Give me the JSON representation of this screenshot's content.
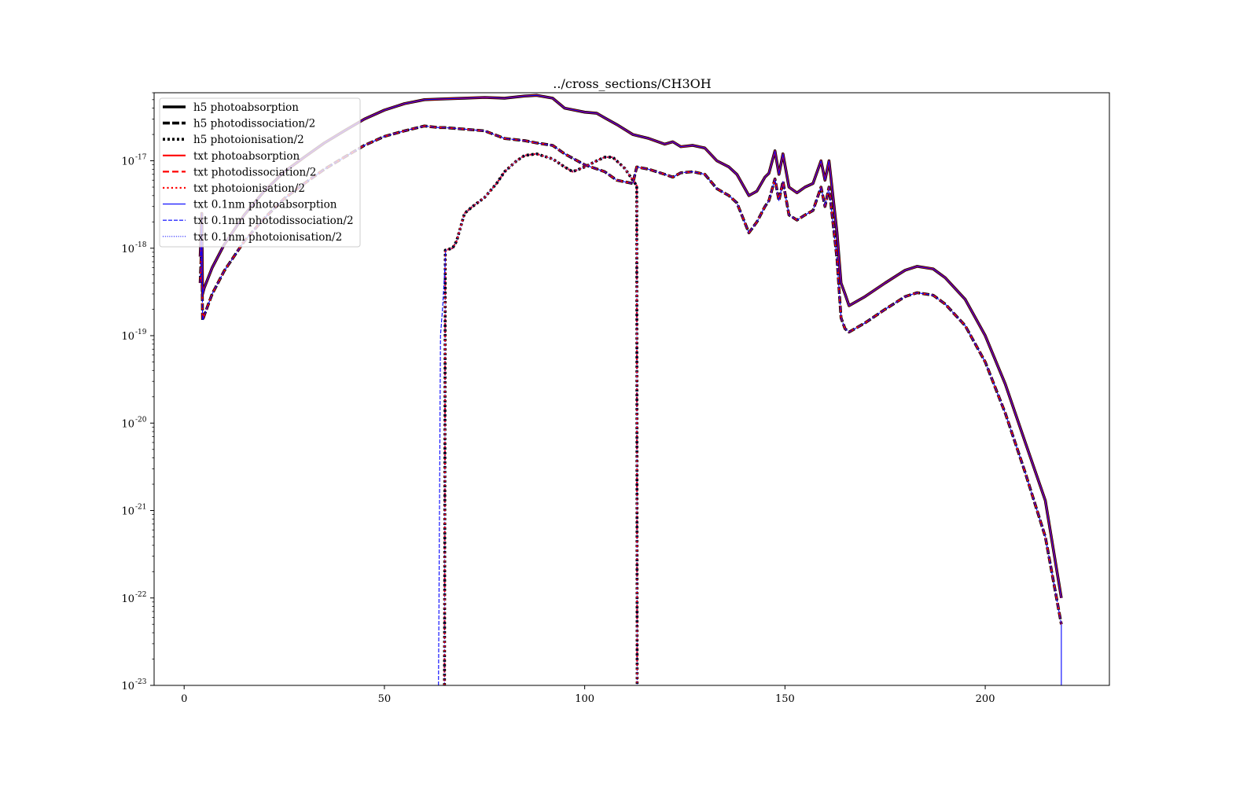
{
  "chart_data": {
    "type": "line",
    "title": "../cross_sections/CH3OH",
    "xlabel": "",
    "ylabel": "",
    "xscale": "linear",
    "yscale": "log",
    "xlim": [
      -7.5,
      231
    ],
    "ylim": [
      1e-23,
      6e-17
    ],
    "x_ticks": [
      0,
      50,
      100,
      150,
      200
    ],
    "y_ticks": [
      {
        "value": 1e-23,
        "base": "10",
        "exp": "-23"
      },
      {
        "value": 1e-22,
        "base": "10",
        "exp": "-22"
      },
      {
        "value": 1e-21,
        "base": "10",
        "exp": "-21"
      },
      {
        "value": 1e-20,
        "base": "10",
        "exp": "-20"
      },
      {
        "value": 1e-19,
        "base": "10",
        "exp": "-19"
      },
      {
        "value": 1e-18,
        "base": "10",
        "exp": "-18"
      },
      {
        "value": 1e-17,
        "base": "10",
        "exp": "-17"
      }
    ],
    "grid": false,
    "legend_position": "top-left",
    "curves": {
      "absorption": [
        [
          4,
          8e-19
        ],
        [
          4.4,
          2.5e-18
        ],
        [
          4.6,
          3e-19
        ],
        [
          5,
          3.5e-19
        ],
        [
          7,
          6e-19
        ],
        [
          10,
          1.1e-18
        ],
        [
          15,
          2.4e-18
        ],
        [
          20,
          4.5e-18
        ],
        [
          25,
          7.5e-18
        ],
        [
          30,
          1.1e-17
        ],
        [
          35,
          1.6e-17
        ],
        [
          40,
          2.2e-17
        ],
        [
          45,
          3e-17
        ],
        [
          50,
          3.8e-17
        ],
        [
          55,
          4.5e-17
        ],
        [
          60,
          5e-17
        ],
        [
          65,
          5.1e-17
        ],
        [
          70,
          5.2e-17
        ],
        [
          75,
          5.3e-17
        ],
        [
          80,
          5.2e-17
        ],
        [
          85,
          5.5e-17
        ],
        [
          88,
          5.6e-17
        ],
        [
          92,
          5.2e-17
        ],
        [
          95,
          4e-17
        ],
        [
          100,
          3.6e-17
        ],
        [
          103,
          3.5e-17
        ],
        [
          105,
          3.1e-17
        ],
        [
          108,
          2.6e-17
        ],
        [
          112,
          2e-17
        ],
        [
          116,
          1.8e-17
        ],
        [
          120,
          1.55e-17
        ],
        [
          122,
          1.65e-17
        ],
        [
          124,
          1.45e-17
        ],
        [
          127,
          1.5e-17
        ],
        [
          130,
          1.4e-17
        ],
        [
          133,
          1e-17
        ],
        [
          136,
          8.5e-18
        ],
        [
          138,
          7e-18
        ],
        [
          141,
          4e-18
        ],
        [
          143,
          4.5e-18
        ],
        [
          145,
          6.5e-18
        ],
        [
          146,
          7.2e-18
        ],
        [
          147.5,
          1.3e-17
        ],
        [
          148.5,
          7e-18
        ],
        [
          149.5,
          1.2e-17
        ],
        [
          151,
          5e-18
        ],
        [
          153,
          4.3e-18
        ],
        [
          155,
          5e-18
        ],
        [
          157,
          5.5e-18
        ],
        [
          159,
          1e-17
        ],
        [
          160,
          6e-18
        ],
        [
          161,
          1e-17
        ],
        [
          163,
          1.5e-18
        ],
        [
          164,
          4e-19
        ],
        [
          165,
          3e-19
        ],
        [
          166,
          2.2e-19
        ],
        [
          170,
          2.8e-19
        ],
        [
          175,
          4e-19
        ],
        [
          180,
          5.6e-19
        ],
        [
          183,
          6.2e-19
        ],
        [
          187,
          5.8e-19
        ],
        [
          190,
          4.6e-19
        ],
        [
          195,
          2.6e-19
        ],
        [
          200,
          1e-19
        ],
        [
          205,
          2.8e-20
        ],
        [
          210,
          6e-21
        ],
        [
          215,
          1.3e-21
        ],
        [
          219,
          1e-22
        ]
      ],
      "dissociation": [
        [
          4,
          4e-19
        ],
        [
          4.4,
          1.2e-18
        ],
        [
          4.6,
          1.5e-19
        ],
        [
          5,
          1.7e-19
        ],
        [
          7,
          3e-19
        ],
        [
          10,
          5.5e-19
        ],
        [
          15,
          1.2e-18
        ],
        [
          20,
          2.2e-18
        ],
        [
          25,
          3.7e-18
        ],
        [
          30,
          5.5e-18
        ],
        [
          35,
          8e-18
        ],
        [
          40,
          1.1e-17
        ],
        [
          45,
          1.5e-17
        ],
        [
          50,
          1.9e-17
        ],
        [
          55,
          2.2e-17
        ],
        [
          60,
          2.5e-17
        ],
        [
          63.5,
          2.4e-17
        ],
        [
          64.5,
          2.4e-17
        ],
        [
          65,
          2.4e-17
        ],
        [
          70,
          2.3e-17
        ],
        [
          75,
          2.2e-17
        ],
        [
          80,
          1.8e-17
        ],
        [
          85,
          1.7e-17
        ],
        [
          88,
          1.6e-17
        ],
        [
          92,
          1.5e-17
        ],
        [
          95,
          1.2e-17
        ],
        [
          100,
          9e-18
        ],
        [
          105,
          7.5e-18
        ],
        [
          108,
          6e-18
        ],
        [
          112,
          5.5e-18
        ],
        [
          113,
          8.5e-18
        ],
        [
          116,
          8e-18
        ],
        [
          120,
          7e-18
        ],
        [
          122,
          6.5e-18
        ],
        [
          124,
          7.3e-18
        ],
        [
          127,
          7.5e-18
        ],
        [
          130,
          7e-18
        ],
        [
          133,
          4.8e-18
        ],
        [
          136,
          4e-18
        ],
        [
          138,
          3.3e-18
        ],
        [
          141,
          1.5e-18
        ],
        [
          143,
          2e-18
        ],
        [
          145,
          3e-18
        ],
        [
          146,
          3.5e-18
        ],
        [
          147.5,
          6.2e-18
        ],
        [
          148.5,
          3.5e-18
        ],
        [
          149.5,
          5.8e-18
        ],
        [
          151,
          2.4e-18
        ],
        [
          153,
          2.1e-18
        ],
        [
          155,
          2.4e-18
        ],
        [
          157,
          2.7e-18
        ],
        [
          159,
          5e-18
        ],
        [
          160,
          3e-18
        ],
        [
          161,
          5e-18
        ],
        [
          163,
          7.5e-19
        ],
        [
          164,
          1.6e-19
        ],
        [
          165,
          1.2e-19
        ],
        [
          166,
          1.1e-19
        ],
        [
          170,
          1.4e-19
        ],
        [
          175,
          2e-19
        ],
        [
          180,
          2.8e-19
        ],
        [
          183,
          3.1e-19
        ],
        [
          187,
          2.9e-19
        ],
        [
          190,
          2.3e-19
        ],
        [
          195,
          1.3e-19
        ],
        [
          200,
          5e-20
        ],
        [
          205,
          1.3e-20
        ],
        [
          210,
          2.7e-21
        ],
        [
          215,
          5e-22
        ],
        [
          219,
          5e-23
        ]
      ],
      "ionisation": [
        [
          65,
          1e-23
        ],
        [
          65.2,
          9.5e-19
        ],
        [
          67,
          1e-18
        ],
        [
          68,
          1.2e-18
        ],
        [
          70,
          2.5e-18
        ],
        [
          72,
          3e-18
        ],
        [
          75,
          3.8e-18
        ],
        [
          78,
          5.5e-18
        ],
        [
          80,
          7.5e-18
        ],
        [
          83,
          1e-17
        ],
        [
          85,
          1.15e-17
        ],
        [
          88,
          1.2e-17
        ],
        [
          92,
          1.05e-17
        ],
        [
          95,
          8.5e-18
        ],
        [
          97,
          7.5e-18
        ],
        [
          100,
          8.5e-18
        ],
        [
          103,
          1e-17
        ],
        [
          105,
          1.1e-17
        ],
        [
          107,
          1.1e-17
        ],
        [
          110,
          8.2e-18
        ],
        [
          112,
          6e-18
        ],
        [
          113,
          5.2e-18
        ],
        [
          113.1,
          1e-23
        ]
      ],
      "blue_ramp": [
        [
          63.5,
          1e-23
        ],
        [
          64,
          1e-19
        ],
        [
          64.5,
          2e-19
        ],
        [
          65,
          5e-19
        ],
        [
          65.3,
          9.5e-19
        ]
      ]
    },
    "series": [
      {
        "name": "h5 photoabsorption",
        "color": "#000000",
        "dash": "solid",
        "width": "thick"
      },
      {
        "name": "h5 photodissociation/2",
        "color": "#000000",
        "dash": "dashed",
        "width": "thick"
      },
      {
        "name": "h5 photoionisation/2",
        "color": "#000000",
        "dash": "dotted",
        "width": "thick"
      },
      {
        "name": "txt photoabsorption",
        "color": "#ff0000",
        "dash": "solid",
        "width": "medium"
      },
      {
        "name": "txt photodissociation/2",
        "color": "#ff0000",
        "dash": "dashed",
        "width": "medium"
      },
      {
        "name": "txt photoionisation/2",
        "color": "#ff0000",
        "dash": "dotted",
        "width": "medium"
      },
      {
        "name": "txt 0.1nm photoabsorption",
        "color": "#0000ff",
        "dash": "solid",
        "width": "thin"
      },
      {
        "name": "txt 0.1nm photodissociation/2",
        "color": "#0000ff",
        "dash": "dashed",
        "width": "thin"
      },
      {
        "name": "txt 0.1nm photoionisation/2",
        "color": "#0000ff",
        "dash": "dotted",
        "width": "thin"
      }
    ]
  }
}
